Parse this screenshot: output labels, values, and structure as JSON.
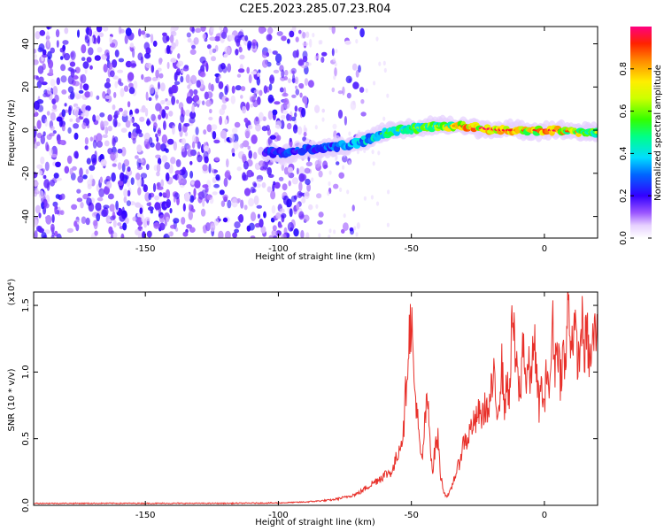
{
  "title": "C2E5.2023.285.07.23.R04",
  "colors": {
    "line": "#e8302a",
    "axis": "#000000"
  },
  "chart_data": [
    {
      "type": "heatmap",
      "xlabel": "Height of straight line (km)",
      "ylabel": "Frequency (Hz)",
      "xlim": [
        -192,
        20
      ],
      "ylim": [
        -50,
        48
      ],
      "x_ticks": [
        -150,
        -100,
        -50,
        0
      ],
      "y_ticks": [
        -40,
        -20,
        0,
        20,
        40
      ],
      "x_tick_labels": [
        "-150",
        "-100",
        "-50",
        "0"
      ],
      "y_tick_labels": [
        "-40",
        "-20",
        "0",
        "20",
        "40"
      ],
      "noise_region_x": [
        -192,
        -88
      ],
      "ridge": [
        {
          "x": -105,
          "y": -10,
          "a": 0.3
        },
        {
          "x": -98,
          "y": -11,
          "a": 0.3
        },
        {
          "x": -90,
          "y": -9,
          "a": 0.32
        },
        {
          "x": -82,
          "y": -8,
          "a": 0.35
        },
        {
          "x": -75,
          "y": -7,
          "a": 0.4
        },
        {
          "x": -68,
          "y": -5,
          "a": 0.45
        },
        {
          "x": -62,
          "y": -2,
          "a": 0.5
        },
        {
          "x": -55,
          "y": 0,
          "a": 0.55
        },
        {
          "x": -48,
          "y": 1,
          "a": 0.6
        },
        {
          "x": -40,
          "y": 2,
          "a": 0.68
        },
        {
          "x": -32,
          "y": 2,
          "a": 0.85
        },
        {
          "x": -25,
          "y": 1,
          "a": 0.95
        },
        {
          "x": -15,
          "y": 0,
          "a": 0.9
        },
        {
          "x": -5,
          "y": 0,
          "a": 0.88
        },
        {
          "x": 5,
          "y": 0,
          "a": 0.92
        },
        {
          "x": 15,
          "y": -1,
          "a": 0.75
        },
        {
          "x": 20,
          "y": -1,
          "a": 0.65
        }
      ],
      "colorbar": {
        "label": "Normalized spectral amplitude",
        "range": [
          0,
          1
        ],
        "ticks": [
          0,
          0.2,
          0.4,
          0.6,
          0.8
        ],
        "tick_labels": [
          "0.0",
          "0.2",
          "0.4",
          "0.6",
          "0.8"
        ]
      }
    },
    {
      "type": "line",
      "xlabel": "Height of straight line (km)",
      "ylabel": "SNR (10 * v/v)",
      "y_multiplier": "(x10⁴)",
      "xlim": [
        -192,
        20
      ],
      "ylim": [
        0,
        16000
      ],
      "x_ticks": [
        -150,
        -100,
        -50,
        0
      ],
      "y_ticks": [
        0,
        5000,
        10000,
        15000
      ],
      "x_tick_labels": [
        "-150",
        "-100",
        "-50",
        "0"
      ],
      "y_tick_labels": [
        "0.0",
        "0.5",
        "1.0",
        "1.5"
      ],
      "series": [
        {
          "color": "#e8302a",
          "x": [
            -192,
            -180,
            -160,
            -140,
            -120,
            -100,
            -90,
            -80,
            -75,
            -70,
            -65,
            -60,
            -57,
            -55,
            -53,
            -52,
            -51,
            -50,
            -49,
            -48,
            -47,
            -46,
            -45,
            -44,
            -43,
            -42,
            -41,
            -40,
            -39,
            -38,
            -37,
            -36,
            -35,
            -34,
            -33,
            -32,
            -31,
            -30,
            -29,
            -28,
            -27,
            -26,
            -25,
            -24,
            -23,
            -22,
            -21,
            -20,
            -19,
            -18,
            -17,
            -16,
            -15,
            -14,
            -13,
            -12,
            -11,
            -10,
            -9,
            -8,
            -7,
            -6,
            -5,
            -4,
            -3,
            -2,
            -1,
            0,
            1,
            2,
            3,
            4,
            5,
            6,
            7,
            8,
            9,
            10,
            11,
            12,
            13,
            14,
            15,
            16,
            17,
            18,
            19,
            20
          ],
          "y": [
            150,
            150,
            150,
            150,
            150,
            180,
            250,
            400,
            600,
            900,
            1600,
            2300,
            2600,
            4000,
            5500,
            9000,
            12500,
            14200,
            9000,
            7500,
            4500,
            3200,
            6000,
            8000,
            5000,
            2500,
            4500,
            5000,
            2200,
            1200,
            700,
            800,
            1200,
            2000,
            2500,
            3200,
            4200,
            5000,
            4800,
            5600,
            6200,
            6000,
            7000,
            6600,
            6900,
            7500,
            6800,
            8500,
            9500,
            7000,
            8000,
            10500,
            7500,
            9000,
            8500,
            14500,
            11000,
            9500,
            8000,
            13200,
            9000,
            10500,
            9000,
            13500,
            9500,
            7500,
            9000,
            7000,
            11000,
            8000,
            14000,
            10500,
            12500,
            9500,
            11500,
            10000,
            16000,
            12000,
            13500,
            12000,
            10500,
            14000,
            11500,
            13000,
            10500,
            12000,
            13000,
            12500
          ]
        }
      ]
    }
  ]
}
